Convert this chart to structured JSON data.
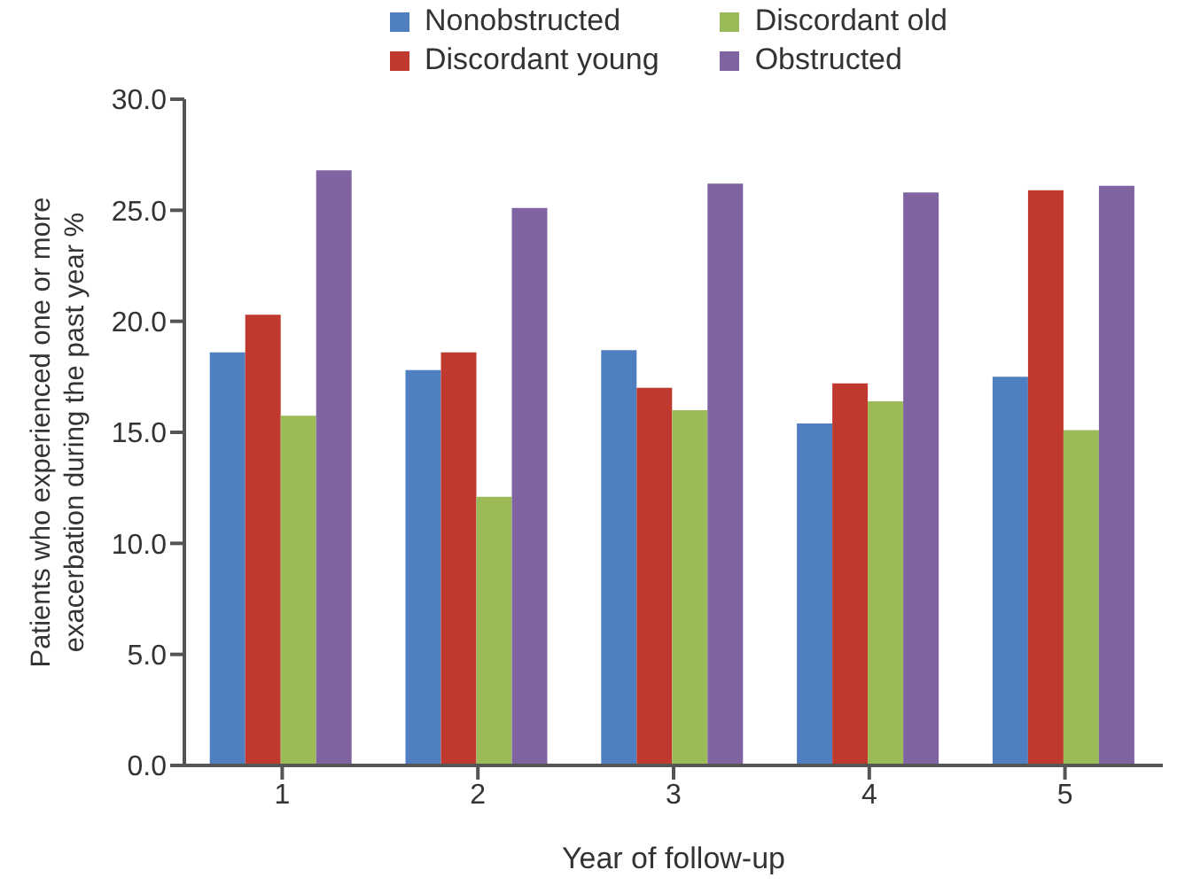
{
  "chart_data": {
    "type": "bar",
    "xlabel": "Year of follow-up",
    "ylabel": "Patients who experienced one or more exacerbation during the past year %",
    "categories": [
      "1",
      "2",
      "3",
      "4",
      "5"
    ],
    "series": [
      {
        "name": "Nonobstructed",
        "color": "#4f7fc0",
        "values": [
          18.6,
          17.8,
          18.7,
          15.4,
          17.5
        ]
      },
      {
        "name": "Discordant young",
        "color": "#c0392f",
        "values": [
          20.3,
          18.6,
          17.0,
          17.2,
          25.9
        ]
      },
      {
        "name": "Discordant old",
        "color": "#9bbb59",
        "values": [
          15.75,
          12.1,
          16.0,
          16.4,
          15.1
        ]
      },
      {
        "name": "Obstructed",
        "color": "#8064a2",
        "values": [
          26.8,
          25.1,
          26.2,
          25.8,
          26.1
        ]
      }
    ],
    "ylim": [
      0,
      30
    ],
    "yticks": [
      {
        "value": 0,
        "label": "0.0"
      },
      {
        "value": 5,
        "label": "5.0"
      },
      {
        "value": 10,
        "label": "10.0"
      },
      {
        "value": 15,
        "label": "15.0"
      },
      {
        "value": 20,
        "label": "20.0"
      },
      {
        "value": 25,
        "label": "25.0"
      },
      {
        "value": 30,
        "label": "30.0"
      }
    ],
    "grid": false,
    "legend": "top"
  }
}
